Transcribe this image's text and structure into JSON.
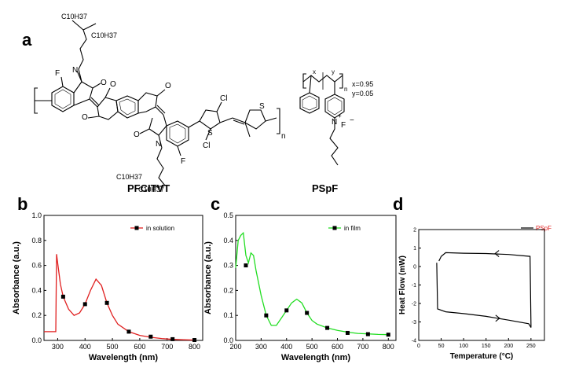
{
  "figure": {
    "panels": [
      "a",
      "b",
      "c",
      "d"
    ],
    "structures": {
      "left": {
        "name": "PFCITVT",
        "atoms": {
          "F": "F",
          "Cl": "Cl",
          "S": "S",
          "N": "N",
          "O": "O",
          "n": "n"
        },
        "side_chain_top": [
          "C10H37",
          "C10H37"
        ],
        "side_chain_bottom": [
          "C10H37",
          "C10H37"
        ]
      },
      "right": {
        "name": "PSpF",
        "x_label": "x=0.95",
        "y_label": "y=0.05",
        "atoms": {
          "x": "x",
          "y": "y",
          "n": "n",
          "N": "N",
          "F": "F",
          "plus": "+",
          "minus": "−"
        }
      }
    },
    "colors": {
      "b_series": "#e02020",
      "c_series": "#22dd22",
      "d_series": "#000000",
      "d_legend_text": "#e02020"
    }
  },
  "chart_data": [
    {
      "panel": "b",
      "type": "line",
      "xlabel": "Wavelength (nm)",
      "ylabel": "Absorbance (a.u.)",
      "xlim": [
        250,
        830
      ],
      "ylim": [
        0,
        1.0
      ],
      "xticks": [
        300,
        400,
        500,
        600,
        700,
        800
      ],
      "yticks": [
        0.0,
        0.2,
        0.4,
        0.6,
        0.8,
        1.0
      ],
      "series": [
        {
          "name": "in solution",
          "x": [
            250,
            293,
            296,
            300,
            310,
            320,
            340,
            360,
            380,
            400,
            420,
            440,
            460,
            480,
            500,
            520,
            560,
            600,
            640,
            680,
            720,
            760,
            800
          ],
          "y": [
            0.07,
            0.07,
            0.69,
            0.62,
            0.45,
            0.35,
            0.25,
            0.2,
            0.22,
            0.29,
            0.4,
            0.49,
            0.44,
            0.3,
            0.2,
            0.13,
            0.07,
            0.04,
            0.025,
            0.015,
            0.008,
            0.005,
            0.003
          ],
          "markers_x": [
            320,
            400,
            480,
            560,
            640,
            720,
            800
          ],
          "markers_y": [
            0.35,
            0.29,
            0.3,
            0.07,
            0.03,
            0.01,
            0.003
          ]
        }
      ],
      "legend_position": "top-right"
    },
    {
      "panel": "c",
      "type": "line",
      "xlabel": "Wavelength (nm)",
      "ylabel": "Absorbance (a.u.)",
      "xlim": [
        200,
        830
      ],
      "ylim": [
        0,
        0.5
      ],
      "xticks": [
        200,
        300,
        400,
        500,
        600,
        700,
        800
      ],
      "yticks": [
        0.0,
        0.1,
        0.2,
        0.3,
        0.4,
        0.5
      ],
      "series": [
        {
          "name": "in film",
          "x": [
            200,
            210,
            220,
            230,
            240,
            250,
            260,
            270,
            280,
            300,
            320,
            340,
            360,
            380,
            400,
            420,
            440,
            460,
            480,
            500,
            520,
            560,
            600,
            640,
            680,
            720,
            760,
            800
          ],
          "y": [
            0.29,
            0.4,
            0.42,
            0.43,
            0.34,
            0.31,
            0.35,
            0.34,
            0.28,
            0.18,
            0.1,
            0.06,
            0.06,
            0.09,
            0.12,
            0.15,
            0.165,
            0.15,
            0.11,
            0.08,
            0.065,
            0.05,
            0.04,
            0.033,
            0.028,
            0.026,
            0.024,
            0.023
          ],
          "markers_x": [
            240,
            320,
            400,
            480,
            560,
            640,
            720,
            800
          ],
          "markers_y": [
            0.3,
            0.1,
            0.12,
            0.11,
            0.05,
            0.03,
            0.025,
            0.023
          ]
        }
      ],
      "legend_position": "top-right"
    },
    {
      "panel": "d",
      "type": "line",
      "xlabel": "Temperature (°C)",
      "ylabel": "Heat Flow (mW)",
      "xlim": [
        0,
        280
      ],
      "ylim": [
        -4,
        2
      ],
      "xticks": [
        0,
        50,
        100,
        150,
        200,
        250
      ],
      "yticks": [
        -4,
        -3,
        -2,
        -1,
        0,
        1,
        2
      ],
      "series": [
        {
          "name": "PSpF",
          "heating_x": [
            40,
            42,
            60,
            100,
            150,
            200,
            245,
            250
          ],
          "heating_y": [
            0.2,
            -2.3,
            -2.45,
            -2.55,
            -2.7,
            -2.9,
            -3.1,
            -3.3
          ],
          "cooling_x": [
            250,
            248,
            200,
            150,
            100,
            60,
            50,
            45
          ],
          "cooling_y": [
            -3.3,
            0.55,
            0.65,
            0.7,
            0.72,
            0.75,
            0.55,
            0.3
          ],
          "arrows": [
            {
              "x": 170,
              "y": 0.7,
              "dir": "left"
            },
            {
              "x": 180,
              "y": -2.8,
              "dir": "right"
            }
          ]
        }
      ],
      "legend_position": "top-right"
    }
  ]
}
